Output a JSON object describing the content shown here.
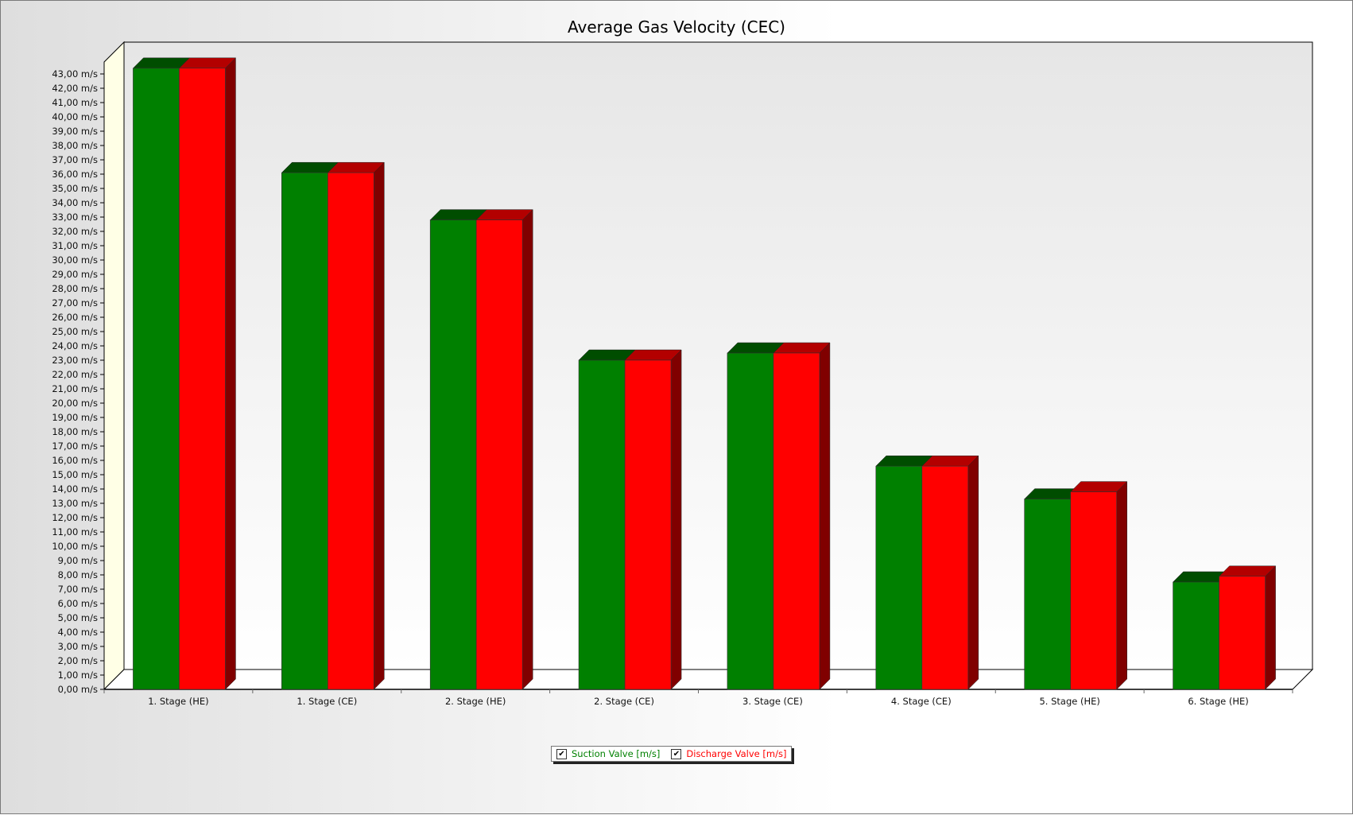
{
  "chart_data": {
    "type": "bar",
    "title": "Average Gas Velocity (CEC)",
    "categories": [
      "1. Stage (HE)",
      "1. Stage (CE)",
      "2. Stage (HE)",
      "2. Stage (CE)",
      "3. Stage (CE)",
      "4. Stage (CE)",
      "5. Stage (HE)",
      "6. Stage (HE)"
    ],
    "series": [
      {
        "name": "Suction Valve [m/s]",
        "color": "#008000",
        "values": [
          43.4,
          36.1,
          32.8,
          23.0,
          23.5,
          15.6,
          13.3,
          7.5
        ]
      },
      {
        "name": "Discharge Valve [m/s]",
        "color": "#ff0000",
        "values": [
          43.4,
          36.1,
          32.8,
          23.0,
          23.5,
          15.6,
          13.8,
          7.9
        ]
      }
    ],
    "ylim": [
      0,
      43
    ],
    "y_tick_step": 1,
    "y_tick_suffix": " m/s",
    "decimal_separator": ",",
    "grid": false,
    "legend_position": "bottom-center",
    "style": "3d-clustered-columns",
    "colors": {
      "wall": "#ffffe6",
      "plot_top": "#e6e6e6"
    }
  },
  "legend": {
    "check_mark": "✔",
    "items": [
      "Suction Valve [m/s]",
      "Discharge Valve [m/s]"
    ]
  }
}
